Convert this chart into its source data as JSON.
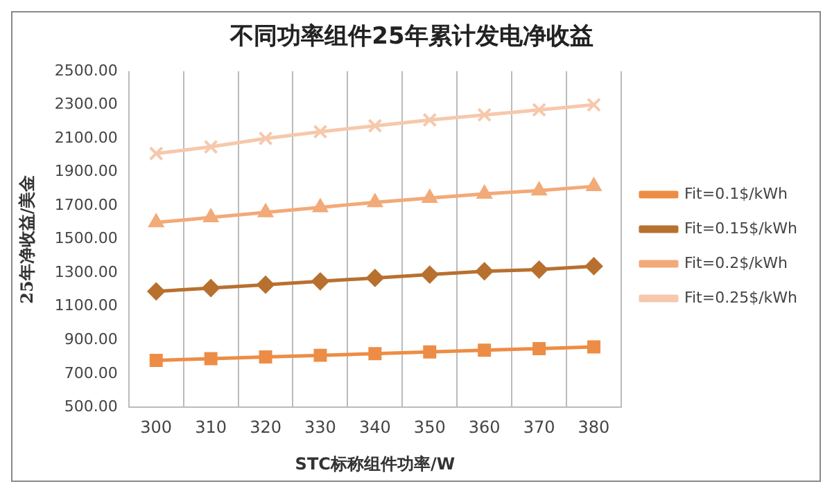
{
  "chart_data": {
    "type": "line",
    "title": "不同功率组件25年累计发电净收益",
    "xlabel": "STC标称组件功率/W",
    "ylabel": "25年净收益/美金",
    "categories": [
      "300",
      "310",
      "320",
      "330",
      "340",
      "350",
      "360",
      "370",
      "380"
    ],
    "series": [
      {
        "name": "Fit=0.1$/kWh",
        "color": "#ed8d45",
        "marker": "square",
        "values": [
          780,
          790,
          800,
          810,
          820,
          830,
          840,
          850,
          860
        ]
      },
      {
        "name": "Fit=0.15$/kWh",
        "color": "#b8702f",
        "marker": "diamond",
        "values": [
          1190,
          1210,
          1230,
          1250,
          1270,
          1290,
          1310,
          1320,
          1340
        ]
      },
      {
        "name": "Fit=0.2$/kWh",
        "color": "#f2aa78",
        "marker": "triangle",
        "values": [
          1600,
          1630,
          1660,
          1690,
          1720,
          1745,
          1770,
          1790,
          1815
        ]
      },
      {
        "name": "Fit=0.25$/kWh",
        "color": "#f6c8ac",
        "marker": "cross",
        "values": [
          2010,
          2050,
          2100,
          2140,
          2175,
          2210,
          2240,
          2270,
          2300
        ]
      }
    ],
    "ylim": [
      500,
      2500
    ],
    "yticks": [
      {
        "value": 500,
        "label": "500.00"
      },
      {
        "value": 700,
        "label": "700.00"
      },
      {
        "value": 900,
        "label": "900.00"
      },
      {
        "value": 1100,
        "label": "1100.00"
      },
      {
        "value": 1300,
        "label": "1300.00"
      },
      {
        "value": 1500,
        "label": "1500.00"
      },
      {
        "value": 1700,
        "label": "1700.00"
      },
      {
        "value": 1900,
        "label": "1900.00"
      },
      {
        "value": 2100,
        "label": "2100.00"
      },
      {
        "value": 2300,
        "label": "2300.00"
      },
      {
        "value": 2500,
        "label": "2500.00"
      }
    ],
    "grid": "x",
    "legend": "right",
    "line_style": "solid"
  }
}
